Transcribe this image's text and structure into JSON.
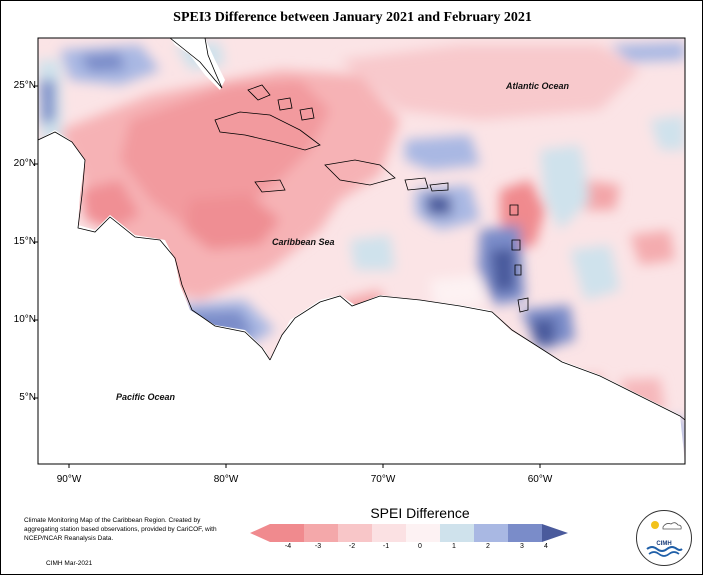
{
  "title": "SPEI3 Difference between January 2021 and February 2021",
  "map": {
    "lon_range": [
      -92,
      -51
    ],
    "lat_range": [
      1.5,
      28.5
    ],
    "y_ticks": [
      "25°N",
      "20°N",
      "15°N",
      "10°N",
      "5°N"
    ],
    "x_ticks": [
      "90°W",
      "80°W",
      "70°W",
      "60°W"
    ],
    "labels": {
      "atlantic": "Atlantic Ocean",
      "caribbean": "Caribbean Sea",
      "pacific": "Pacific Ocean"
    }
  },
  "legend": {
    "title": "SPEI Difference",
    "ticks": [
      "-4",
      "-3",
      "-2",
      "-1",
      "0",
      "1",
      "2",
      "3",
      "4"
    ],
    "colors": [
      "#f08a8e",
      "#f4a8aa",
      "#f8c6c8",
      "#fbe1e3",
      "#fdf2f3",
      "#cfe2ec",
      "#a9b8e3",
      "#7a8cc9",
      "#4a5a9c"
    ]
  },
  "credit": {
    "text": "Climate Monitoring Map of the Caribbean Region. Created by aggregating station based observations, provided by CariCOF, with NCEP/NCAR Reanalysis Data.",
    "date": "CIMH Mar-2021"
  },
  "logo": {
    "text": "CIMH",
    "icon": "cimh-logo-icon"
  }
}
